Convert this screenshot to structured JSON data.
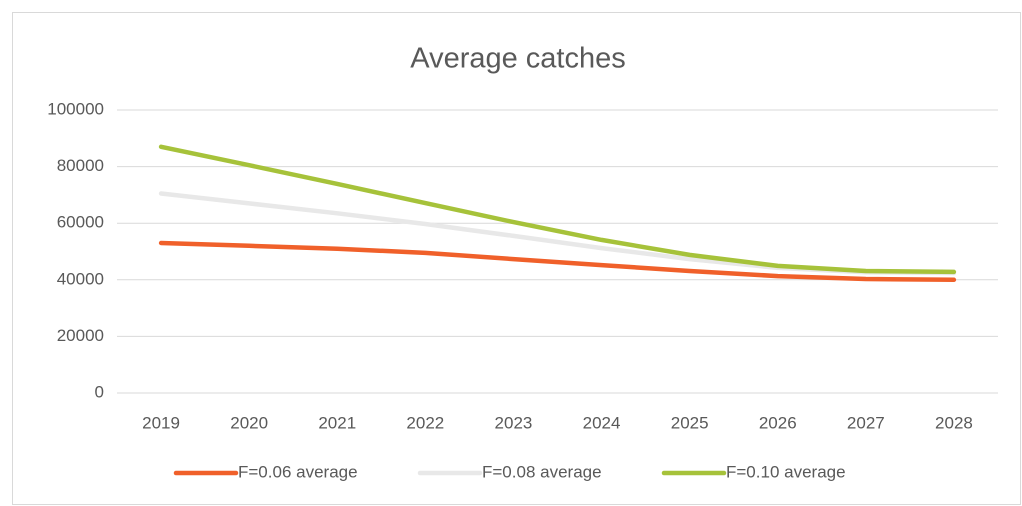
{
  "chart_data": {
    "type": "line",
    "title": "Average catches",
    "categories": [
      "2019",
      "2020",
      "2021",
      "2022",
      "2023",
      "2024",
      "2025",
      "2026",
      "2027",
      "2028"
    ],
    "series": [
      {
        "name": "F=0.06 average",
        "color": "#f0602a",
        "values": [
          53000,
          52000,
          51000,
          49500,
          47300,
          45200,
          43100,
          41300,
          40300,
          40000
        ]
      },
      {
        "name": "F=0.08 average",
        "color": "#e8e8e8",
        "values": [
          70500,
          67000,
          63500,
          59700,
          55500,
          51200,
          47300,
          44200,
          42700,
          42400
        ]
      },
      {
        "name": "F=0.10 average",
        "color": "#a6c23a",
        "values": [
          87000,
          80500,
          73900,
          67100,
          60400,
          54100,
          48800,
          44900,
          43100,
          42800
        ]
      }
    ],
    "ylim": [
      0,
      100000
    ],
    "yticks": [
      0,
      20000,
      40000,
      60000,
      80000,
      100000
    ],
    "grid": true,
    "legend": "bottom"
  }
}
